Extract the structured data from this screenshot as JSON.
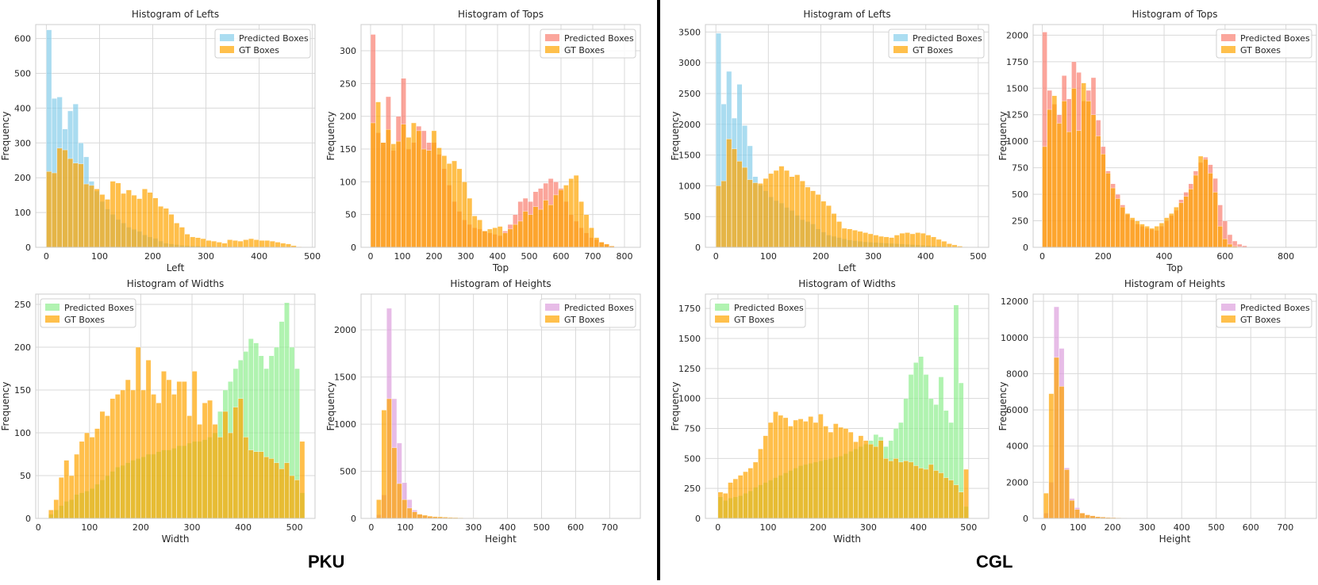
{
  "groups": [
    {
      "id": "pku",
      "label": "PKU"
    },
    {
      "id": "cgl",
      "label": "CGL"
    }
  ],
  "colors": {
    "sky": "#87CEEB",
    "salmon": "#FA8072",
    "lightgreen": "#90EE90",
    "plum": "#DDA0DD",
    "orange": "#FFA500"
  },
  "chart_data": [
    {
      "id": "pku-lefts",
      "type": "bar",
      "title": "Histogram of Lefts",
      "xlabel": "Left",
      "ylabel": "Frequency",
      "xlim": [
        -20,
        505
      ],
      "ylim": [
        0,
        640
      ],
      "xticks": [
        0,
        100,
        200,
        300,
        400,
        500
      ],
      "yticks": [
        0,
        100,
        200,
        300,
        400,
        500,
        600
      ],
      "legend_loc": "top-right",
      "bin_width": 10,
      "series": [
        {
          "name": "Predicted Boxes",
          "color": "sky",
          "start": 0,
          "values": [
            625,
            428,
            432,
            340,
            392,
            412,
            300,
            260,
            190,
            162,
            132,
            110,
            95,
            80,
            70,
            58,
            52,
            46,
            36,
            30,
            26,
            18,
            12,
            10,
            8,
            6,
            5,
            4,
            4,
            3,
            3,
            2,
            2,
            2,
            2,
            2,
            1,
            1,
            1,
            1,
            1,
            1,
            0,
            0,
            0,
            0,
            0,
            0
          ]
        },
        {
          "name": "GT Boxes",
          "color": "orange",
          "start": 0,
          "values": [
            218,
            214,
            285,
            280,
            255,
            242,
            240,
            182,
            178,
            168,
            152,
            138,
            190,
            185,
            155,
            165,
            150,
            140,
            168,
            158,
            142,
            118,
            112,
            95,
            70,
            58,
            38,
            30,
            28,
            25,
            20,
            18,
            15,
            12,
            22,
            20,
            18,
            22,
            25,
            22,
            20,
            20,
            18,
            15,
            12,
            10,
            5,
            2
          ]
        }
      ]
    },
    {
      "id": "pku-tops",
      "type": "bar",
      "title": "Histogram of Tops",
      "xlabel": "Top",
      "ylabel": "Frequency",
      "xlim": [
        -30,
        850
      ],
      "ylim": [
        0,
        340
      ],
      "xticks": [
        0,
        100,
        200,
        300,
        400,
        500,
        600,
        700,
        800
      ],
      "yticks": [
        0,
        50,
        100,
        150,
        200,
        250,
        300
      ],
      "legend_loc": "top-right",
      "bin_width": 16,
      "series": [
        {
          "name": "Predicted Boxes",
          "color": "salmon",
          "start": 0,
          "values": [
            325,
            175,
            160,
            230,
            148,
            200,
            258,
            150,
            160,
            185,
            178,
            160,
            160,
            142,
            120,
            95,
            70,
            55,
            42,
            35,
            30,
            28,
            25,
            22,
            20,
            18,
            25,
            35,
            50,
            70,
            75,
            70,
            85,
            90,
            98,
            105,
            100,
            90,
            70,
            50,
            40,
            30,
            22,
            15,
            12,
            8,
            5,
            2
          ]
        },
        {
          "name": "GT Boxes",
          "color": "orange",
          "start": 0,
          "values": [
            190,
            222,
            160,
            180,
            158,
            162,
            188,
            168,
            190,
            178,
            150,
            148,
            178,
            152,
            140,
            128,
            132,
            120,
            100,
            75,
            48,
            42,
            25,
            28,
            30,
            32,
            22,
            28,
            35,
            40,
            55,
            50,
            62,
            58,
            72,
            65,
            80,
            88,
            95,
            105,
            110,
            70,
            50,
            30,
            15,
            8,
            5,
            2
          ]
        }
      ]
    },
    {
      "id": "pku-widths",
      "type": "bar",
      "title": "Histogram of Widths",
      "xlabel": "Width",
      "ylabel": "Frequency",
      "xlim": [
        -5,
        540
      ],
      "ylim": [
        0,
        262
      ],
      "xticks": [
        0,
        100,
        200,
        300,
        400,
        500
      ],
      "yticks": [
        0,
        50,
        100,
        150,
        200,
        250
      ],
      "legend_loc": "top-left",
      "bin_width": 10,
      "series": [
        {
          "name": "Predicted Boxes",
          "color": "lightgreen",
          "start": 20,
          "values": [
            5,
            10,
            15,
            20,
            22,
            28,
            30,
            32,
            35,
            40,
            45,
            50,
            55,
            60,
            62,
            65,
            68,
            70,
            72,
            75,
            75,
            78,
            80,
            80,
            82,
            85,
            85,
            88,
            90,
            90,
            92,
            95,
            100,
            125,
            150,
            160,
            175,
            185,
            195,
            210,
            205,
            190,
            175,
            190,
            200,
            230,
            252,
            200,
            175,
            30
          ]
        },
        {
          "name": "GT Boxes",
          "color": "orange",
          "start": 20,
          "values": [
            10,
            22,
            48,
            68,
            50,
            75,
            90,
            100,
            95,
            105,
            125,
            120,
            140,
            145,
            150,
            162,
            150,
            200,
            150,
            185,
            145,
            135,
            172,
            162,
            145,
            160,
            160,
            120,
            172,
            110,
            135,
            138,
            110,
            95,
            125,
            100,
            130,
            140,
            95,
            80,
            78,
            78,
            72,
            70,
            65,
            58,
            65,
            50,
            45,
            90
          ]
        }
      ]
    },
    {
      "id": "pku-heights",
      "type": "bar",
      "title": "Histogram of Heights",
      "xlabel": "Height",
      "ylabel": "Frequency",
      "xlim": [
        -30,
        790
      ],
      "ylim": [
        0,
        2380
      ],
      "xticks": [
        0,
        100,
        200,
        300,
        400,
        500,
        600,
        700
      ],
      "yticks": [
        0,
        500,
        1000,
        1500,
        2000
      ],
      "legend_loc": "top-right",
      "bin_width": 15,
      "series": [
        {
          "name": "Predicted Boxes",
          "color": "plum",
          "start": 15,
          "values": [
            40,
            250,
            2230,
            1270,
            800,
            380,
            200,
            90,
            45,
            30,
            20,
            15,
            12,
            10,
            8,
            6,
            5,
            4,
            3,
            3,
            2,
            2,
            2,
            2,
            2
          ]
        },
        {
          "name": "GT Boxes",
          "color": "orange",
          "start": 15,
          "values": [
            200,
            1150,
            1270,
            750,
            370,
            200,
            110,
            70,
            45,
            35,
            25,
            20,
            18,
            15,
            12,
            10,
            8,
            6,
            5,
            5,
            4,
            3,
            2,
            2,
            2
          ]
        }
      ]
    },
    {
      "id": "cgl-lefts",
      "type": "bar",
      "title": "Histogram of Lefts",
      "xlabel": "Left",
      "ylabel": "Frequency",
      "xlim": [
        -20,
        520
      ],
      "ylim": [
        0,
        3620
      ],
      "xticks": [
        0,
        100,
        200,
        300,
        400,
        500
      ],
      "yticks": [
        0,
        500,
        1000,
        1500,
        2000,
        2500,
        3000,
        3500
      ],
      "legend_loc": "top-right",
      "bin_width": 10,
      "series": [
        {
          "name": "Predicted Boxes",
          "color": "sky",
          "start": 0,
          "values": [
            3480,
            2330,
            2860,
            2100,
            2650,
            1980,
            1650,
            1150,
            1010,
            920,
            820,
            760,
            720,
            650,
            600,
            520,
            450,
            420,
            380,
            300,
            250,
            200,
            180,
            160,
            140,
            120,
            110,
            100,
            90,
            85,
            80,
            75,
            70,
            65,
            60,
            55,
            50,
            45,
            40,
            35,
            30,
            25,
            20,
            15,
            10,
            8,
            5,
            2
          ]
        },
        {
          "name": "GT Boxes",
          "color": "orange",
          "start": 0,
          "values": [
            1000,
            1080,
            1760,
            1600,
            1400,
            1300,
            1100,
            1050,
            1040,
            1120,
            1200,
            1250,
            1320,
            1250,
            1150,
            1180,
            1080,
            980,
            920,
            860,
            750,
            680,
            550,
            420,
            310,
            300,
            280,
            260,
            240,
            220,
            200,
            180,
            170,
            160,
            200,
            230,
            240,
            220,
            240,
            230,
            200,
            170,
            130,
            100,
            60,
            40,
            20,
            8
          ]
        }
      ]
    },
    {
      "id": "cgl-tops",
      "type": "bar",
      "title": "Histogram of Tops",
      "xlabel": "Top",
      "ylabel": "Frequency",
      "xlim": [
        -30,
        900
      ],
      "ylim": [
        0,
        2100
      ],
      "xticks": [
        0,
        200,
        400,
        600,
        800
      ],
      "yticks": [
        0,
        250,
        500,
        750,
        1000,
        1250,
        1500,
        1750,
        2000
      ],
      "legend_loc": "top-right",
      "bin_width": 16,
      "series": [
        {
          "name": "Predicted Boxes",
          "color": "salmon",
          "start": 0,
          "values": [
            2030,
            1480,
            1350,
            1250,
            1620,
            1400,
            1750,
            1650,
            1380,
            1480,
            1600,
            1200,
            950,
            720,
            600,
            500,
            400,
            310,
            260,
            220,
            200,
            180,
            170,
            160,
            200,
            250,
            300,
            350,
            450,
            520,
            600,
            720,
            800,
            850,
            780,
            650,
            400,
            250,
            120,
            60,
            30,
            15
          ]
        },
        {
          "name": "GT Boxes",
          "color": "orange",
          "start": 0,
          "values": [
            950,
            1300,
            1430,
            1170,
            1380,
            1090,
            1500,
            1100,
            1550,
            1380,
            1250,
            1050,
            880,
            700,
            560,
            460,
            380,
            320,
            280,
            250,
            220,
            200,
            180,
            200,
            230,
            280,
            320,
            380,
            420,
            480,
            550,
            680,
            860,
            830,
            700,
            520,
            200,
            80,
            30,
            10,
            5,
            2
          ]
        }
      ]
    },
    {
      "id": "cgl-widths",
      "type": "bar",
      "title": "Histogram of Widths",
      "xlabel": "Width",
      "ylabel": "Frequency",
      "xlim": [
        -25,
        540
      ],
      "ylim": [
        0,
        1870
      ],
      "xticks": [
        0,
        100,
        200,
        300,
        400,
        500
      ],
      "yticks": [
        0,
        250,
        500,
        750,
        1000,
        1250,
        1500,
        1750
      ],
      "legend_loc": "top-left",
      "bin_width": 10,
      "series": [
        {
          "name": "Predicted Boxes",
          "color": "lightgreen",
          "start": 0,
          "values": [
            180,
            150,
            170,
            180,
            190,
            210,
            230,
            260,
            280,
            300,
            320,
            340,
            360,
            380,
            400,
            420,
            440,
            450,
            460,
            470,
            480,
            490,
            500,
            510,
            520,
            540,
            560,
            580,
            600,
            620,
            650,
            700,
            680,
            600,
            650,
            750,
            800,
            1000,
            1200,
            1300,
            1350,
            1200,
            1000,
            950,
            1180,
            900,
            800,
            1780,
            1130,
            100
          ]
        },
        {
          "name": "GT Boxes",
          "color": "orange",
          "start": 0,
          "values": [
            220,
            210,
            300,
            330,
            360,
            390,
            420,
            470,
            580,
            690,
            800,
            890,
            860,
            840,
            770,
            820,
            830,
            810,
            850,
            800,
            870,
            770,
            720,
            790,
            760,
            750,
            720,
            640,
            690,
            650,
            620,
            600,
            650,
            500,
            480,
            500,
            470,
            480,
            470,
            440,
            420,
            410,
            450,
            400,
            380,
            340,
            320,
            280,
            220,
            410
          ]
        }
      ]
    },
    {
      "id": "cgl-heights",
      "type": "bar",
      "title": "Histogram of Heights",
      "xlabel": "Height",
      "ylabel": "Frequency",
      "xlim": [
        -30,
        790
      ],
      "ylim": [
        0,
        12400
      ],
      "xticks": [
        0,
        100,
        200,
        300,
        400,
        500,
        600,
        700
      ],
      "yticks": [
        0,
        2000,
        4000,
        6000,
        8000,
        10000,
        12000
      ],
      "legend_loc": "top-right",
      "bin_width": 15,
      "series": [
        {
          "name": "Predicted Boxes",
          "color": "plum",
          "start": 0,
          "values": [
            300,
            2000,
            11700,
            9400,
            2800,
            1100,
            600,
            300,
            200,
            150,
            100,
            80,
            60,
            50,
            40,
            30,
            20,
            15,
            10,
            8,
            5,
            4,
            3,
            2
          ]
        },
        {
          "name": "GT Boxes",
          "color": "orange",
          "start": 0,
          "values": [
            1400,
            6900,
            8900,
            7300,
            2700,
            1000,
            500,
            300,
            200,
            150,
            100,
            80,
            60,
            50,
            40,
            30,
            20,
            15,
            10,
            8,
            5,
            4,
            3,
            2
          ]
        }
      ]
    }
  ]
}
